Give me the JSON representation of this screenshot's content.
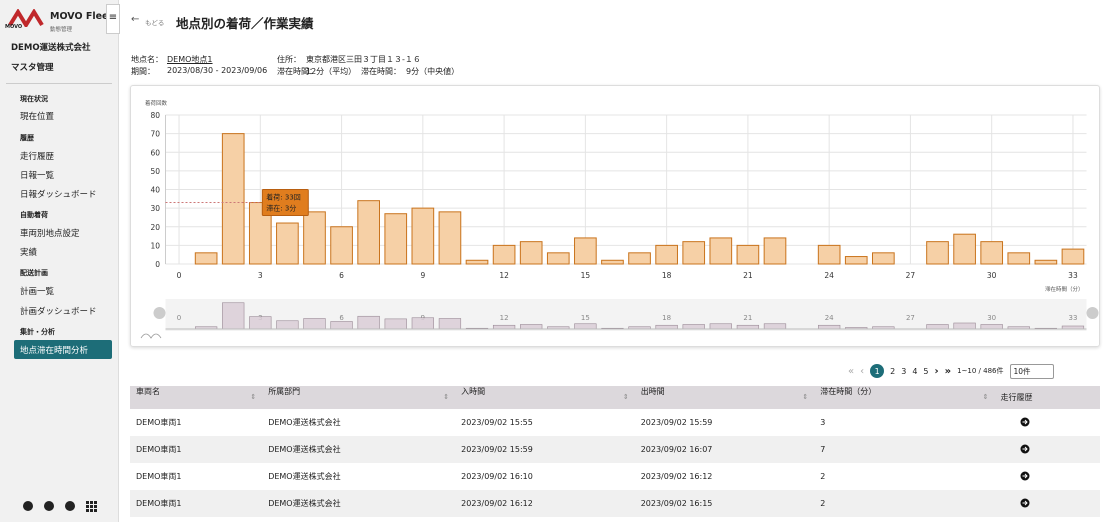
{
  "sidebar": {
    "brand": "MOVO Fleet",
    "brand_sub": "動態管理",
    "logo_text": "MOVO",
    "company": "DEMO運送株式会社",
    "master": "マスタ管理",
    "sections": [
      {
        "title": "現在状況",
        "items": [
          "現在位置"
        ]
      },
      {
        "title": "履歴",
        "items": [
          "走行履歴",
          "日報一覧",
          "日報ダッシュボード"
        ]
      },
      {
        "title": "自動着荷",
        "items": [
          "車両別地点設定",
          "実績"
        ]
      },
      {
        "title": "配送計画",
        "items": [
          "計画一覧",
          "計画ダッシュボード"
        ]
      },
      {
        "title": "集計・分析",
        "items": [
          "地点滞在時間分析"
        ]
      }
    ]
  },
  "header": {
    "back": "もどる",
    "title": "地点別の着荷／作業実績"
  },
  "info": {
    "place_label": "地点名：",
    "place": "DEMO地点1",
    "address_label": "住所：",
    "address": "東京都港区三田３丁目１３-１６",
    "period_label": "期間：",
    "period": "2023/08/30 - 2023/09/06",
    "stay_avg_label": "滞在時間：",
    "stay_avg": "12分（平均）",
    "stay_median_label": "滞在時間：",
    "stay_median": "9分（中央値）"
  },
  "chart_data": {
    "type": "bar",
    "y_label": "着荷回数",
    "x_label": "滞在時間（分）",
    "x": [
      0,
      1,
      2,
      3,
      4,
      5,
      6,
      7,
      8,
      9,
      10,
      11,
      12,
      13,
      14,
      15,
      16,
      17,
      18,
      19,
      20,
      21,
      22,
      23,
      24,
      25,
      26,
      27,
      28,
      29,
      30,
      31,
      32,
      33
    ],
    "values": [
      0,
      6,
      70,
      33,
      22,
      28,
      20,
      34,
      27,
      30,
      28,
      2,
      10,
      12,
      6,
      14,
      2,
      6,
      10,
      12,
      14,
      10,
      14,
      0,
      10,
      4,
      6,
      0,
      12,
      16,
      12,
      6,
      2,
      8
    ],
    "color": "#f6d0a6",
    "edge_color": "#c9731c",
    "xlim": [
      -0.5,
      33.5
    ],
    "xticks": [
      0,
      3,
      6,
      9,
      12,
      15,
      18,
      21,
      24,
      27,
      30,
      33
    ],
    "ylim": [
      0,
      80
    ],
    "yticks": [
      0,
      10,
      20,
      30,
      40,
      50,
      60,
      70,
      80
    ],
    "grid": true,
    "tooltip": [
      "着荷: 33回",
      "滞在: 3分"
    ]
  },
  "pagination": {
    "first": "«",
    "prev": "‹",
    "pages": [
      1,
      2,
      3,
      4,
      5
    ],
    "next": "›",
    "last": "»",
    "summary": "1~10 / 486件",
    "per_page": "10件"
  },
  "table": {
    "columns": [
      "車両名",
      "所属部門",
      "入時間",
      "出時間",
      "滞在時間（分）",
      "走行履歴"
    ],
    "rows": [
      [
        "DEMO車両1",
        "DEMO運送株式会社",
        "2023/09/02 15:55",
        "2023/09/02 15:59",
        3
      ],
      [
        "DEMO車両1",
        "DEMO運送株式会社",
        "2023/09/02 15:59",
        "2023/09/02 16:07",
        7
      ],
      [
        "DEMO車両1",
        "DEMO運送株式会社",
        "2023/09/02 16:10",
        "2023/09/02 16:12",
        2
      ],
      [
        "DEMO車両1",
        "DEMO運送株式会社",
        "2023/09/02 16:12",
        "2023/09/02 16:15",
        2
      ]
    ]
  }
}
